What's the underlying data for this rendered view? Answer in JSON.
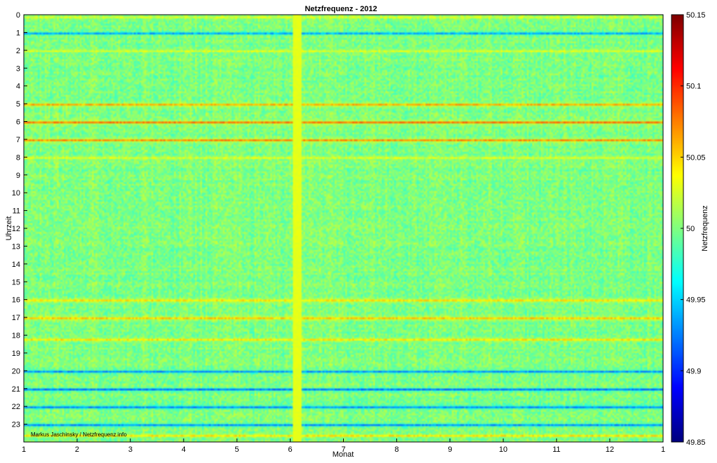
{
  "chart_data": {
    "type": "heatmap",
    "title": "Netzfrequenz - 2012",
    "xlabel": "Monat",
    "ylabel": "Uhrzeit",
    "x_ticks": [
      "1",
      "2",
      "3",
      "4",
      "5",
      "6",
      "7",
      "8",
      "9",
      "10",
      "11",
      "12",
      "1"
    ],
    "y_ticks": [
      "0",
      "1",
      "2",
      "3",
      "4",
      "5",
      "6",
      "7",
      "8",
      "9",
      "10",
      "11",
      "12",
      "13",
      "14",
      "15",
      "16",
      "17",
      "18",
      "19",
      "20",
      "21",
      "22",
      "23"
    ],
    "xlim": [
      1,
      13
    ],
    "ylim": [
      0,
      24
    ],
    "colorbar": {
      "label": "Netzfrequenz",
      "range": [
        49.85,
        50.15
      ],
      "ticks": [
        "49.85",
        "49.9",
        "49.95",
        "50",
        "50.05",
        "50.1",
        "50.15"
      ],
      "colormap": "jet"
    },
    "credit": "Markus Jaschinsky / Netzfrequenz.info",
    "hour_bands": [
      {
        "hour": 0.1,
        "value": 50.03,
        "note_value": 50.05
      },
      {
        "hour": 1.0,
        "value": 49.93
      },
      {
        "hour": 2.0,
        "value": 50.03
      },
      {
        "hour": 5.0,
        "value": 50.07
      },
      {
        "hour": 6.0,
        "value": 50.09
      },
      {
        "hour": 7.0,
        "value": 50.08
      },
      {
        "hour": 8.0,
        "value": 50.03
      },
      {
        "hour": 16.0,
        "value": 50.05
      },
      {
        "hour": 17.0,
        "value": 50.06
      },
      {
        "hour": 18.2,
        "value": 50.05
      },
      {
        "hour": 20.0,
        "value": 49.92
      },
      {
        "hour": 21.0,
        "value": 49.91
      },
      {
        "hour": 22.0,
        "value": 49.92
      },
      {
        "hour": 23.0,
        "value": 49.92
      },
      {
        "hour": 23.6,
        "value": 50.05
      }
    ],
    "anomaly": {
      "month": 6.1,
      "value": 50.03
    }
  }
}
